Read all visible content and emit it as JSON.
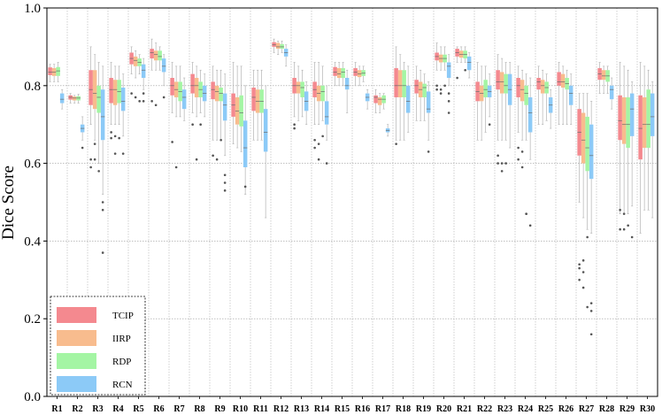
{
  "chart_data": {
    "type": "boxplot",
    "xlabel": "",
    "ylabel": "Dice Score",
    "ylim": [
      0.0,
      1.0
    ],
    "yticks": [
      "0.0",
      "0.2",
      "0.4",
      "0.6",
      "0.8",
      "1.0"
    ],
    "grid": "y-dotted-and-x-dotted",
    "legend_position": "bottom-left",
    "categories": [
      "R1",
      "R2",
      "R3",
      "R4",
      "R5",
      "R6",
      "R7",
      "R8",
      "R9",
      "R10",
      "R11",
      "R12",
      "R13",
      "R14",
      "R15",
      "R16",
      "R17",
      "R18",
      "R19",
      "R20",
      "R21",
      "R22",
      "R23",
      "R24",
      "R25",
      "R26",
      "R27",
      "R28",
      "R29",
      "R30"
    ],
    "series": [
      {
        "name": "TCIP",
        "color": "#f4898f",
        "boxes": [
          [
            0.827,
            0.835,
            0.847,
            0.81,
            0.855,
            []
          ],
          [
            0.764,
            0.77,
            0.775,
            0.755,
            0.78,
            []
          ],
          [
            0.75,
            0.79,
            0.84,
            0.7,
            0.9,
            [
              0.61,
              0.59
            ]
          ],
          [
            0.755,
            0.79,
            0.82,
            0.7,
            0.86,
            [
              0.68,
              0.665
            ]
          ],
          [
            0.855,
            0.87,
            0.885,
            0.83,
            0.9,
            [
              0.78
            ]
          ],
          [
            0.87,
            0.885,
            0.895,
            0.84,
            0.92,
            [
              0.76
            ]
          ],
          [
            0.775,
            0.8,
            0.82,
            0.73,
            0.86,
            [
              0.655
            ]
          ],
          [
            0.78,
            0.8,
            0.83,
            0.73,
            0.86,
            [
              0.7
            ]
          ],
          [
            0.765,
            0.79,
            0.81,
            0.66,
            0.85,
            [
              0.62
            ]
          ],
          [
            0.72,
            0.75,
            0.78,
            0.65,
            0.86,
            []
          ],
          [
            0.735,
            0.77,
            0.795,
            0.66,
            0.84,
            []
          ],
          [
            0.9,
            0.905,
            0.912,
            0.885,
            0.92,
            []
          ],
          [
            0.78,
            0.8,
            0.82,
            0.72,
            0.86,
            [
              0.69,
              0.7
            ]
          ],
          [
            0.77,
            0.79,
            0.81,
            0.7,
            0.86,
            [
              0.66,
              0.64
            ]
          ],
          [
            0.825,
            0.835,
            0.848,
            0.8,
            0.86,
            []
          ],
          [
            0.825,
            0.835,
            0.845,
            0.8,
            0.86,
            []
          ],
          [
            0.755,
            0.77,
            0.775,
            0.73,
            0.79,
            []
          ],
          [
            0.77,
            0.8,
            0.845,
            0.66,
            0.9,
            [
              0.65
            ]
          ],
          [
            0.78,
            0.8,
            0.815,
            0.71,
            0.85,
            []
          ],
          [
            0.865,
            0.875,
            0.885,
            0.84,
            0.91,
            [
              0.8,
              0.79
            ]
          ],
          [
            0.875,
            0.885,
            0.895,
            0.86,
            0.9,
            [
              0.82
            ]
          ],
          [
            0.76,
            0.785,
            0.81,
            0.66,
            0.86,
            []
          ],
          [
            0.79,
            0.81,
            0.84,
            0.66,
            0.88,
            [
              0.62,
              0.6
            ]
          ],
          [
            0.77,
            0.8,
            0.82,
            0.68,
            0.85,
            [
              0.64,
              0.61
            ]
          ],
          [
            0.79,
            0.81,
            0.82,
            0.7,
            0.85,
            []
          ],
          [
            0.8,
            0.81,
            0.835,
            0.7,
            0.86,
            []
          ],
          [
            0.62,
            0.68,
            0.74,
            0.5,
            0.78,
            [
              0.34,
              0.33,
              0.3
            ]
          ],
          [
            0.815,
            0.83,
            0.845,
            0.78,
            0.86,
            []
          ],
          [
            0.66,
            0.71,
            0.775,
            0.47,
            0.86,
            [
              0.48,
              0.43
            ]
          ],
          [
            0.61,
            0.69,
            0.775,
            0.42,
            0.86,
            []
          ]
        ]
      },
      {
        "name": "IIRP",
        "color": "#f8bc8e",
        "boxes": [
          [
            0.825,
            0.835,
            0.845,
            0.81,
            0.855,
            []
          ],
          [
            0.762,
            0.768,
            0.772,
            0.755,
            0.775,
            []
          ],
          [
            0.74,
            0.78,
            0.84,
            0.66,
            0.88,
            [
              0.65,
              0.61
            ]
          ],
          [
            0.75,
            0.79,
            0.815,
            0.7,
            0.85,
            [
              0.67,
              0.625
            ]
          ],
          [
            0.85,
            0.865,
            0.875,
            0.82,
            0.89,
            [
              0.77
            ]
          ],
          [
            0.865,
            0.88,
            0.89,
            0.84,
            0.91,
            [
              0.75
            ]
          ],
          [
            0.77,
            0.79,
            0.81,
            0.72,
            0.85,
            [
              0.59
            ]
          ],
          [
            0.77,
            0.8,
            0.82,
            0.72,
            0.85,
            [
              0.61
            ]
          ],
          [
            0.76,
            0.785,
            0.8,
            0.66,
            0.84,
            [
              0.61
            ]
          ],
          [
            0.7,
            0.735,
            0.77,
            0.64,
            0.85,
            []
          ],
          [
            0.73,
            0.76,
            0.79,
            0.66,
            0.84,
            []
          ],
          [
            0.895,
            0.9,
            0.91,
            0.88,
            0.915,
            []
          ],
          [
            0.78,
            0.8,
            0.81,
            0.71,
            0.85,
            []
          ],
          [
            0.76,
            0.78,
            0.8,
            0.7,
            0.86,
            [
              0.65,
              0.61
            ]
          ],
          [
            0.82,
            0.83,
            0.845,
            0.8,
            0.86,
            []
          ],
          [
            0.822,
            0.83,
            0.84,
            0.8,
            0.85,
            []
          ],
          [
            0.75,
            0.765,
            0.77,
            0.73,
            0.78,
            []
          ],
          [
            0.77,
            0.8,
            0.84,
            0.66,
            0.88,
            []
          ],
          [
            0.77,
            0.79,
            0.81,
            0.71,
            0.84,
            []
          ],
          [
            0.86,
            0.87,
            0.88,
            0.84,
            0.9,
            [
              0.79,
              0.78
            ]
          ],
          [
            0.872,
            0.88,
            0.89,
            0.86,
            0.9,
            []
          ],
          [
            0.76,
            0.78,
            0.8,
            0.66,
            0.85,
            []
          ],
          [
            0.78,
            0.81,
            0.835,
            0.66,
            0.87,
            [
              0.6,
              0.58
            ]
          ],
          [
            0.76,
            0.79,
            0.815,
            0.66,
            0.84,
            [
              0.63,
              0.59
            ]
          ],
          [
            0.78,
            0.8,
            0.815,
            0.7,
            0.84,
            []
          ],
          [
            0.795,
            0.81,
            0.83,
            0.7,
            0.85,
            []
          ],
          [
            0.6,
            0.66,
            0.73,
            0.46,
            0.78,
            [
              0.35,
              0.32,
              0.28
            ]
          ],
          [
            0.815,
            0.825,
            0.84,
            0.78,
            0.85,
            []
          ],
          [
            0.65,
            0.7,
            0.77,
            0.47,
            0.85,
            [
              0.47,
              0.43
            ]
          ],
          [
            0.64,
            0.7,
            0.77,
            0.48,
            0.85,
            []
          ]
        ]
      },
      {
        "name": "RDP",
        "color": "#a4f5a4",
        "boxes": [
          [
            0.825,
            0.838,
            0.848,
            0.81,
            0.86,
            []
          ],
          [
            0.762,
            0.768,
            0.773,
            0.755,
            0.778,
            []
          ],
          [
            0.73,
            0.77,
            0.8,
            0.6,
            0.86,
            [
              0.58
            ]
          ],
          [
            0.755,
            0.785,
            0.815,
            0.7,
            0.85,
            [
              0.665
            ]
          ],
          [
            0.85,
            0.86,
            0.87,
            0.83,
            0.88,
            [
              0.76
            ]
          ],
          [
            0.865,
            0.875,
            0.89,
            0.84,
            0.9,
            []
          ],
          [
            0.76,
            0.785,
            0.81,
            0.72,
            0.85,
            []
          ],
          [
            0.77,
            0.79,
            0.81,
            0.73,
            0.84,
            [
              0.7
            ]
          ],
          [
            0.76,
            0.78,
            0.795,
            0.66,
            0.84,
            [
              0.66
            ]
          ],
          [
            0.695,
            0.73,
            0.775,
            0.63,
            0.85,
            []
          ],
          [
            0.73,
            0.76,
            0.79,
            0.66,
            0.84,
            []
          ],
          [
            0.895,
            0.9,
            0.907,
            0.885,
            0.915,
            []
          ],
          [
            0.77,
            0.795,
            0.81,
            0.72,
            0.84,
            []
          ],
          [
            0.76,
            0.785,
            0.8,
            0.71,
            0.85,
            [
              0.67
            ]
          ],
          [
            0.82,
            0.835,
            0.845,
            0.8,
            0.86,
            []
          ],
          [
            0.825,
            0.832,
            0.84,
            0.81,
            0.85,
            []
          ],
          [
            0.755,
            0.765,
            0.775,
            0.74,
            0.78,
            []
          ],
          [
            0.77,
            0.8,
            0.84,
            0.66,
            0.86,
            []
          ],
          [
            0.77,
            0.795,
            0.805,
            0.71,
            0.83,
            []
          ],
          [
            0.86,
            0.87,
            0.88,
            0.84,
            0.9,
            [
              0.8
            ]
          ],
          [
            0.87,
            0.88,
            0.89,
            0.86,
            0.9,
            [
              0.84
            ]
          ],
          [
            0.77,
            0.79,
            0.815,
            0.68,
            0.85,
            []
          ],
          [
            0.78,
            0.8,
            0.83,
            0.66,
            0.86,
            [
              0.6
            ]
          ],
          [
            0.75,
            0.78,
            0.8,
            0.66,
            0.83,
            [
              0.47,
              0.47
            ]
          ],
          [
            0.78,
            0.795,
            0.81,
            0.71,
            0.83,
            []
          ],
          [
            0.79,
            0.805,
            0.82,
            0.7,
            0.84,
            []
          ],
          [
            0.58,
            0.64,
            0.72,
            0.43,
            0.78,
            [
              0.41,
              0.23
            ]
          ],
          [
            0.81,
            0.825,
            0.84,
            0.78,
            0.85,
            []
          ],
          [
            0.64,
            0.7,
            0.77,
            0.47,
            0.84,
            [
              0.44
            ]
          ],
          [
            0.64,
            0.7,
            0.79,
            0.48,
            0.84,
            []
          ]
        ]
      },
      {
        "name": "RCN",
        "color": "#8ccaf7",
        "boxes": [
          [
            0.755,
            0.765,
            0.78,
            0.74,
            0.79,
            []
          ],
          [
            0.68,
            0.69,
            0.7,
            0.66,
            0.72,
            [
              0.64
            ]
          ],
          [
            0.66,
            0.72,
            0.79,
            0.52,
            0.85,
            [
              0.5,
              0.48,
              0.37
            ]
          ],
          [
            0.735,
            0.76,
            0.795,
            0.67,
            0.83,
            [
              0.625
            ]
          ],
          [
            0.82,
            0.84,
            0.855,
            0.79,
            0.87,
            [
              0.78,
              0.76
            ]
          ],
          [
            0.835,
            0.85,
            0.87,
            0.8,
            0.88,
            [
              0.77
            ]
          ],
          [
            0.74,
            0.77,
            0.79,
            0.71,
            0.82,
            []
          ],
          [
            0.76,
            0.78,
            0.8,
            0.72,
            0.83,
            []
          ],
          [
            0.71,
            0.75,
            0.78,
            0.62,
            0.83,
            [
              0.57,
              0.55,
              0.53
            ]
          ],
          [
            0.59,
            0.64,
            0.71,
            0.52,
            0.8,
            [
              0.54
            ]
          ],
          [
            0.63,
            0.68,
            0.74,
            0.46,
            0.8,
            []
          ],
          [
            0.875,
            0.885,
            0.895,
            0.85,
            0.905,
            []
          ],
          [
            0.735,
            0.76,
            0.785,
            0.7,
            0.81,
            []
          ],
          [
            0.7,
            0.72,
            0.76,
            0.66,
            0.8,
            [
              0.6
            ]
          ],
          [
            0.79,
            0.8,
            0.82,
            0.73,
            0.84,
            []
          ],
          [
            0.76,
            0.77,
            0.78,
            0.74,
            0.79,
            []
          ],
          [
            0.68,
            0.685,
            0.69,
            0.67,
            0.7,
            []
          ],
          [
            0.73,
            0.76,
            0.8,
            0.68,
            0.85,
            []
          ],
          [
            0.73,
            0.74,
            0.785,
            0.66,
            0.81,
            [
              0.63
            ]
          ],
          [
            0.82,
            0.85,
            0.86,
            0.8,
            0.88,
            [
              0.78,
              0.76,
              0.73
            ]
          ],
          [
            0.84,
            0.86,
            0.875,
            0.82,
            0.885,
            []
          ],
          [
            0.77,
            0.785,
            0.8,
            0.72,
            0.83,
            [
              0.7
            ]
          ],
          [
            0.75,
            0.79,
            0.83,
            0.64,
            0.86,
            []
          ],
          [
            0.68,
            0.73,
            0.77,
            0.61,
            0.82,
            [
              0.44
            ]
          ],
          [
            0.73,
            0.75,
            0.77,
            0.69,
            0.79,
            []
          ],
          [
            0.75,
            0.78,
            0.8,
            0.7,
            0.83,
            []
          ],
          [
            0.56,
            0.62,
            0.7,
            0.42,
            0.76,
            [
              0.24,
              0.22,
              0.16
            ]
          ],
          [
            0.765,
            0.79,
            0.8,
            0.74,
            0.82,
            []
          ],
          [
            0.67,
            0.74,
            0.78,
            0.49,
            0.81,
            [
              0.41
            ]
          ],
          [
            0.67,
            0.72,
            0.78,
            0.46,
            0.81,
            []
          ]
        ]
      }
    ]
  }
}
